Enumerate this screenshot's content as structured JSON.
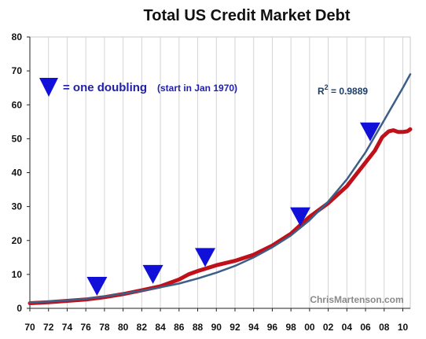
{
  "chart_data": {
    "type": "line",
    "title": "Total US Credit Market Debt",
    "xlabel": "",
    "ylabel": "",
    "xlim": [
      1970,
      2010.8
    ],
    "ylim": [
      0,
      80
    ],
    "y_ticks": [
      0,
      10,
      20,
      30,
      40,
      50,
      60,
      70,
      80
    ],
    "x_ticks": [
      {
        "value": 1970,
        "label": "70"
      },
      {
        "value": 1972,
        "label": "72"
      },
      {
        "value": 1974,
        "label": "74"
      },
      {
        "value": 1976,
        "label": "76"
      },
      {
        "value": 1978,
        "label": "78"
      },
      {
        "value": 1980,
        "label": "80"
      },
      {
        "value": 1982,
        "label": "82"
      },
      {
        "value": 1984,
        "label": "84"
      },
      {
        "value": 1986,
        "label": "86"
      },
      {
        "value": 1988,
        "label": "88"
      },
      {
        "value": 1990,
        "label": "90"
      },
      {
        "value": 1992,
        "label": "92"
      },
      {
        "value": 1994,
        "label": "94"
      },
      {
        "value": 1996,
        "label": "96"
      },
      {
        "value": 1998,
        "label": "98"
      },
      {
        "value": 2000,
        "label": "00"
      },
      {
        "value": 2002,
        "label": "02"
      },
      {
        "value": 2004,
        "label": "04"
      },
      {
        "value": 2006,
        "label": "06"
      },
      {
        "value": 2008,
        "label": "08"
      },
      {
        "value": 2010,
        "label": "10"
      }
    ],
    "grid": {
      "vertical": true,
      "horizontal": false
    },
    "series": [
      {
        "color": "#c0101a",
        "x": [
          1970,
          1972,
          1974,
          1976,
          1978,
          1980,
          1982,
          1984,
          1986,
          1987,
          1988,
          1990,
          1992,
          1994,
          1996,
          1998,
          1999,
          2000,
          2002,
          2004,
          2006,
          2007,
          2007.8,
          2008.5,
          2009,
          2009.5,
          2010,
          2010.5,
          2010.8
        ],
        "y": [
          1.5,
          1.8,
          2.2,
          2.6,
          3.3,
          4.2,
          5.3,
          6.5,
          8.5,
          10.0,
          11.0,
          12.7,
          14.0,
          15.8,
          18.5,
          22.0,
          24.5,
          27.0,
          31.0,
          36.0,
          43.0,
          46.5,
          50.5,
          52.2,
          52.5,
          52.0,
          52.0,
          52.2,
          52.8
        ]
      },
      {
        "color": "#3d5f87",
        "x": [
          1970,
          1972,
          1974,
          1976,
          1978,
          1980,
          1982,
          1984,
          1986,
          1988,
          1990,
          1992,
          1994,
          1996,
          1998,
          2000,
          2002,
          2004,
          2006,
          2008,
          2010,
          2010.8
        ],
        "y": [
          1.7,
          2.0,
          2.4,
          2.8,
          3.5,
          4.3,
          5.2,
          6.2,
          7.3,
          8.8,
          10.5,
          12.5,
          15.0,
          18.0,
          21.5,
          26.0,
          31.5,
          38.0,
          46.0,
          55.5,
          65.0,
          69.0
        ]
      }
    ],
    "markers": {
      "color": "#1010d8",
      "x": [
        1977.2,
        1983.2,
        1988.8,
        1999.0,
        2006.5
      ],
      "y": [
        6.5,
        10.0,
        15.0,
        27.0,
        52.0
      ]
    },
    "legend": {
      "text": "= one doubling",
      "subtext": "(start in Jan 1970)",
      "color": "#1f1fa8"
    },
    "annotations": {
      "r2_prefix": "R",
      "r2_exp": "2",
      "r2_value": " = 0.9889",
      "r2_color": "#1f3e66"
    },
    "watermark": "ChrisMartenson.com"
  }
}
